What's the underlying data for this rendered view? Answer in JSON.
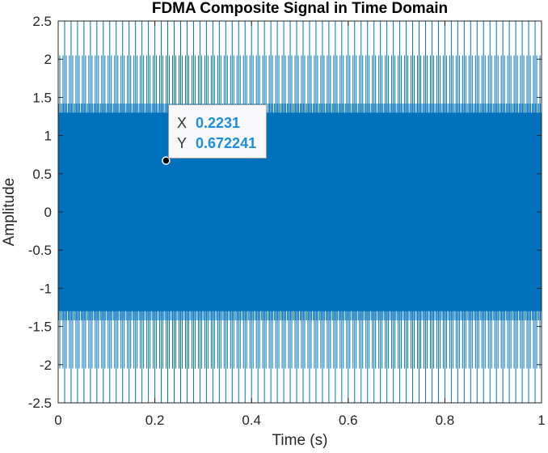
{
  "chart_data": {
    "type": "line",
    "title": "FDMA Composite Signal in Time Domain",
    "xlabel": "Time (s)",
    "ylabel": "Amplitude",
    "xlim": [
      0,
      1
    ],
    "ylim": [
      -2.5,
      2.5
    ],
    "xticks": [
      "0",
      "0.2",
      "0.4",
      "0.6",
      "0.8",
      "1"
    ],
    "yticks": [
      "2.5",
      "2",
      "1.5",
      "1",
      "0.5",
      "0",
      "-0.5",
      "-1",
      "-1.5",
      "-2",
      "-2.5"
    ],
    "grid": false,
    "line_color": "#0072bd",
    "series": [
      {
        "description_values": {
          "dense_band": [
            -1.3,
            1.3
          ],
          "peak_spikes_max": 2.5,
          "peak_spikes_min": -2.5,
          "secondary_spikes": [
            2.05,
            -2.05
          ]
        }
      }
    ],
    "datatip": {
      "x_label": "X",
      "x_value": "0.2231",
      "y_label": "Y",
      "y_value": "0.672241",
      "x": 0.2231,
      "y": 0.672241
    }
  }
}
